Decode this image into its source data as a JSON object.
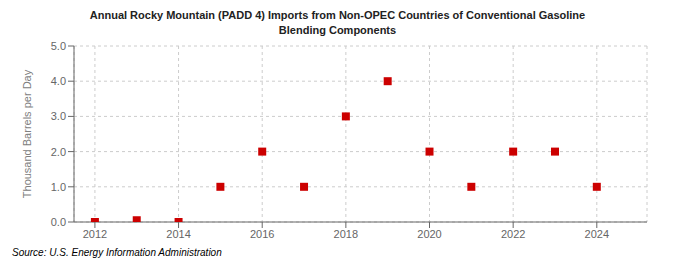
{
  "chart_data": {
    "type": "scatter",
    "title": "Annual Rocky Mountain (PADD 4) Imports from Non-OPEC Countries of Conventional Gasoline\nBlending Components",
    "ylabel": "Thousand Barrels per Day",
    "annotations": [
      "Source: U.S. Energy Information Administration"
    ],
    "x": [
      2012,
      2013,
      2014,
      2015,
      2016,
      2017,
      2018,
      2019,
      2020,
      2021,
      2022,
      2023,
      2024
    ],
    "values": [
      0.0,
      0.05,
      0.0,
      1.0,
      2.0,
      1.0,
      3.0,
      4.0,
      2.0,
      1.0,
      2.0,
      2.0,
      1.0
    ],
    "xlim": [
      2011.5,
      2025.2
    ],
    "ylim": [
      0.0,
      5.0
    ],
    "xticks": [
      2012,
      2014,
      2016,
      2018,
      2020,
      2022,
      2024
    ],
    "yticks": [
      {
        "value": 0.0,
        "label": "0.0"
      },
      {
        "value": 1.0,
        "label": "1.0"
      },
      {
        "value": 2.0,
        "label": "2.0"
      },
      {
        "value": 3.0,
        "label": "3.0"
      },
      {
        "value": 4.0,
        "label": "4.0"
      },
      {
        "value": 5.0,
        "label": "5.0"
      }
    ],
    "color": "#cc0000",
    "marker": "square",
    "grid": true
  }
}
